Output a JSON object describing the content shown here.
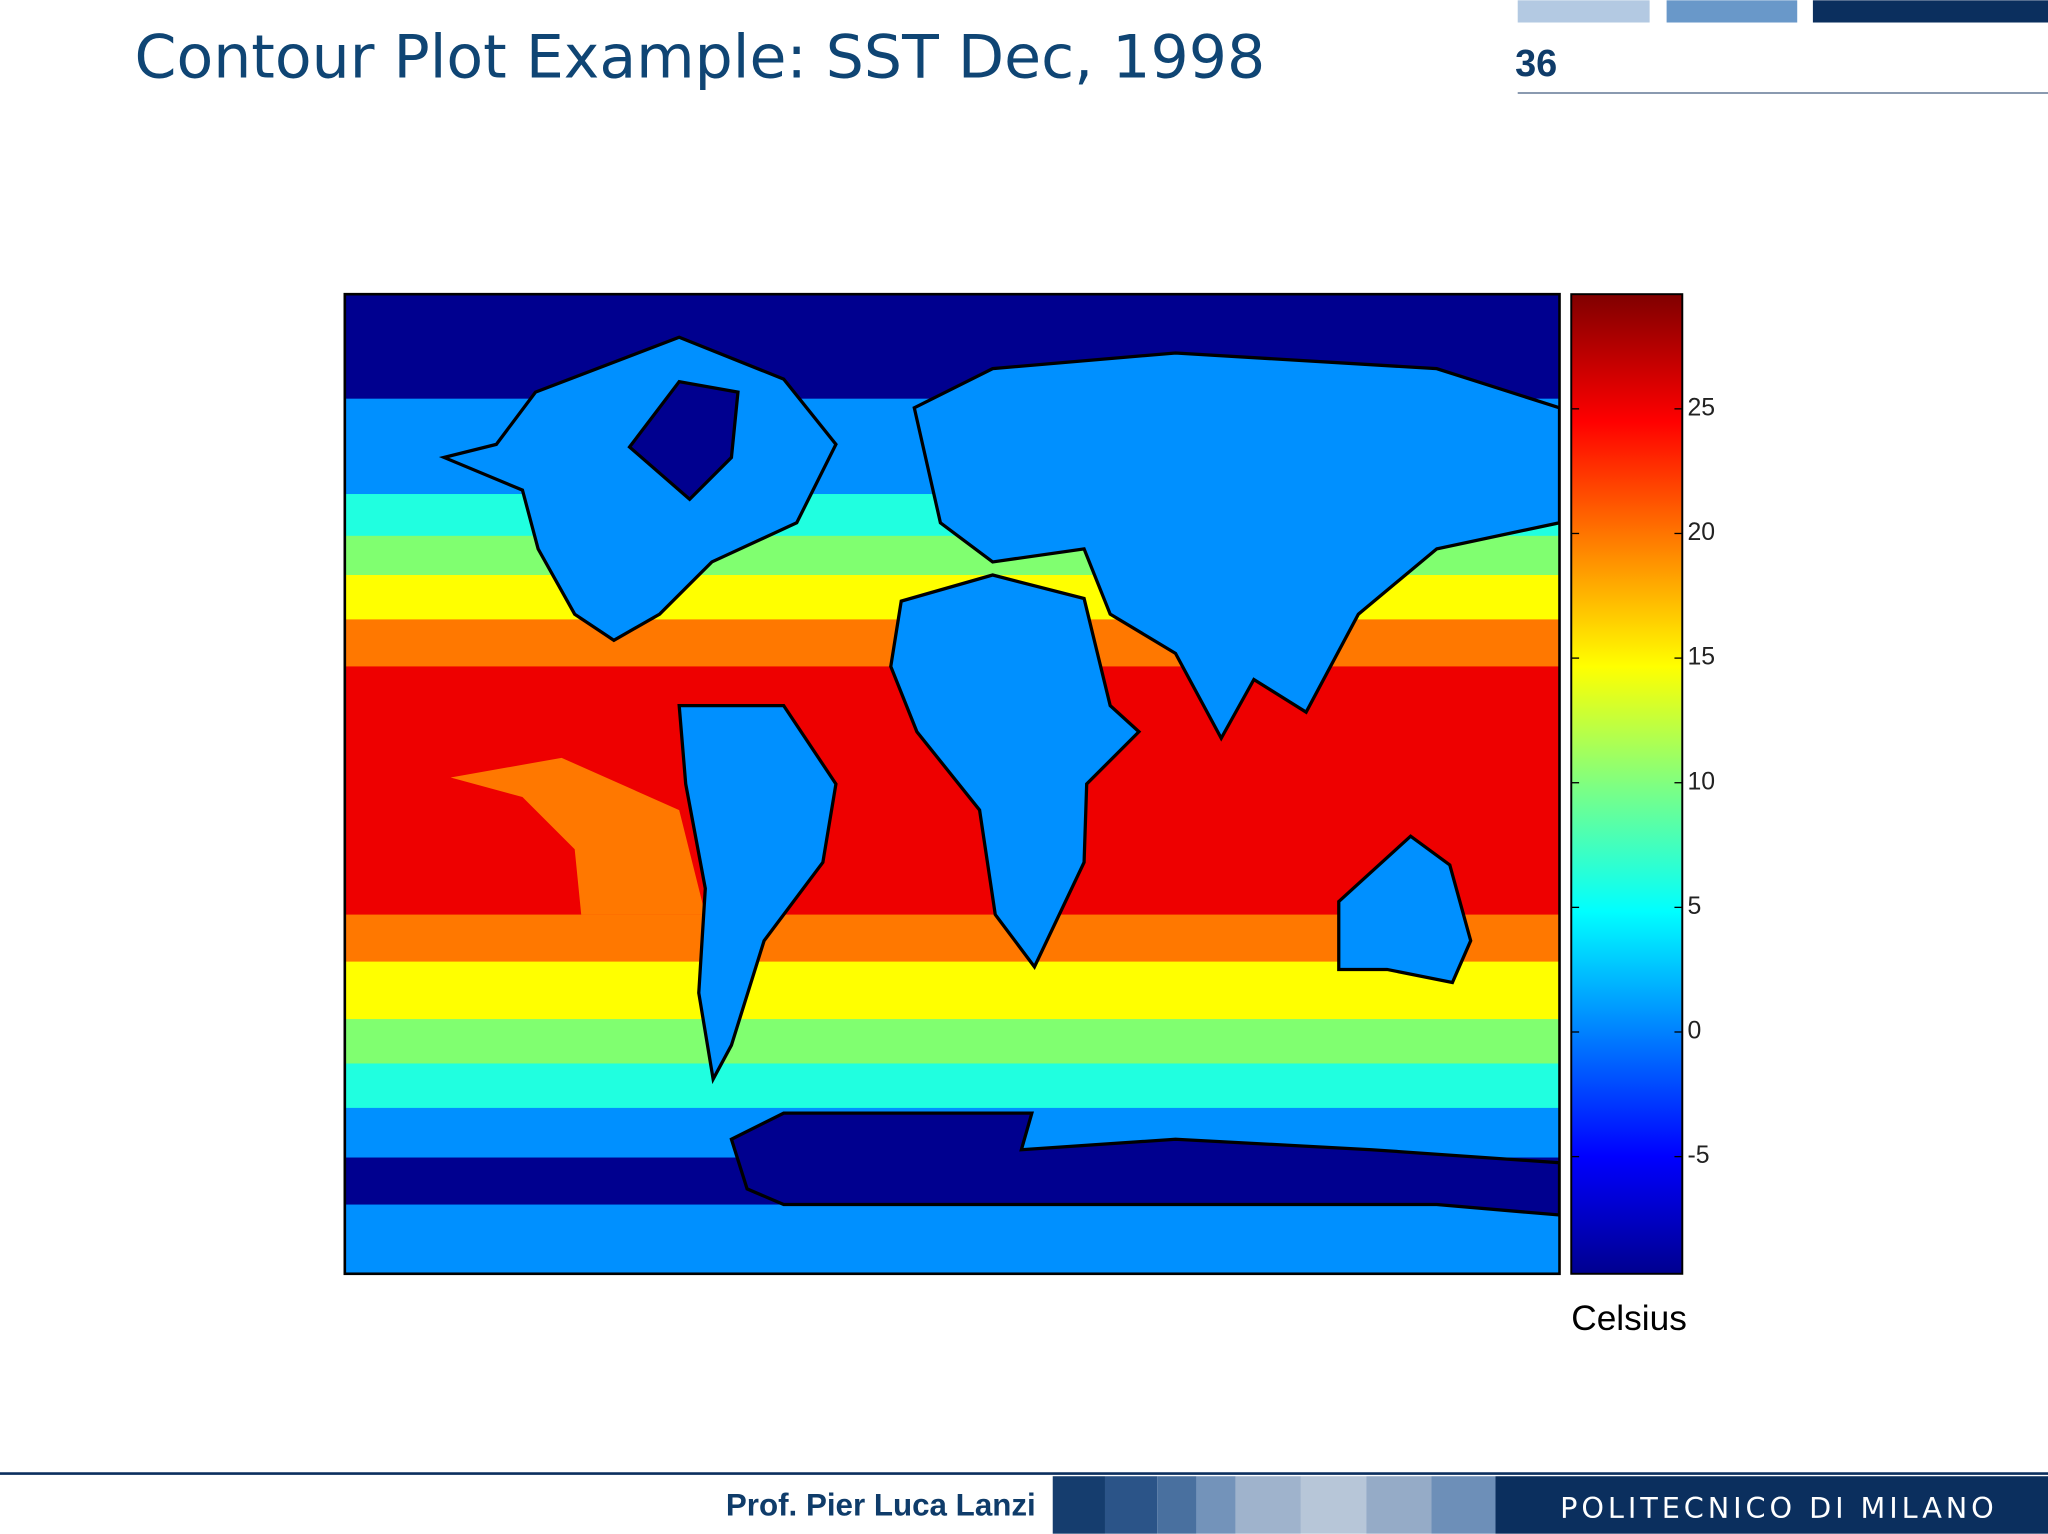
{
  "header": {
    "title": "Contour Plot Example: SST Dec, 1998",
    "page_number": "36"
  },
  "chart_data": {
    "type": "contour",
    "colorbar_label": "Celsius",
    "ylim": [
      -9.7,
      29.6
    ],
    "yticks": [
      -5,
      0,
      5,
      10,
      15,
      20,
      25
    ]
  },
  "footer": {
    "author": "Prof. Pier Luca Lanzi",
    "institution": "POLITECNICO DI MILANO"
  }
}
